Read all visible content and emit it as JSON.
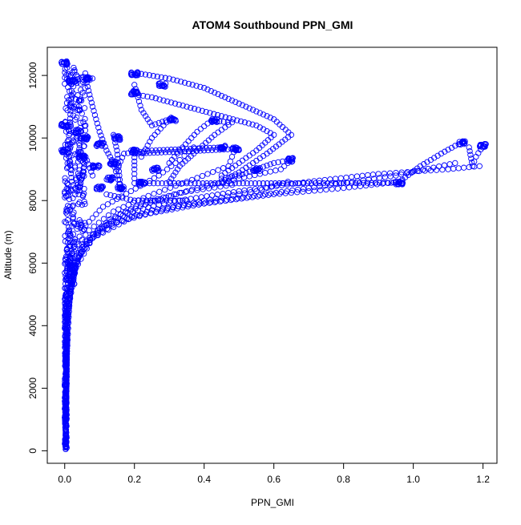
{
  "chart_data": {
    "type": "scatter",
    "title": "ATOM4 Southbound PPN_GMI",
    "xlabel": "PPN_GMI",
    "ylabel": "Altitude (m)",
    "xlim": [
      -0.05,
      1.24
    ],
    "ylim": [
      -400,
      12900
    ],
    "xticks": [
      "0.0",
      "0.2",
      "0.4",
      "0.6",
      "0.8",
      "1.0",
      "1.2"
    ],
    "xtick_values": [
      0,
      0.2,
      0.4,
      0.6,
      0.8,
      1.0,
      1.2
    ],
    "yticks": [
      "0",
      "2000",
      "4000",
      "6000",
      "8000",
      "10000",
      "12000"
    ],
    "ytick_values": [
      0,
      2000,
      4000,
      6000,
      8000,
      10000,
      12000
    ],
    "marker": "open-circle",
    "point_color": "#0000ff",
    "grid": false,
    "series": [
      {
        "profiles": [
          [
            [
              0.003,
              100
            ],
            [
              0.005,
              2000
            ],
            [
              0.008,
              4000
            ],
            [
              0.02,
              5500
            ],
            [
              0.05,
              6500
            ],
            [
              0.12,
              7200
            ],
            [
              0.25,
              7700
            ],
            [
              0.45,
              8000
            ],
            [
              0.7,
              8400
            ],
            [
              0.95,
              8800
            ],
            [
              1.12,
              9200
            ]
          ],
          [
            [
              0.002,
              150
            ],
            [
              0.004,
              2500
            ],
            [
              0.01,
              4500
            ],
            [
              0.03,
              5800
            ],
            [
              0.08,
              6800
            ],
            [
              0.2,
              7500
            ],
            [
              0.4,
              7900
            ],
            [
              0.6,
              8200
            ],
            [
              0.8,
              8400
            ],
            [
              0.96,
              8600
            ]
          ],
          [
            [
              0.003,
              300
            ],
            [
              0.006,
              3000
            ],
            [
              0.015,
              5000
            ],
            [
              0.04,
              6200
            ],
            [
              0.1,
              7100
            ],
            [
              0.18,
              7600
            ],
            [
              0.3,
              7950
            ],
            [
              0.5,
              8300
            ],
            [
              0.7,
              8600
            ],
            [
              0.9,
              8850
            ],
            [
              1.1,
              9000
            ],
            [
              1.19,
              9100
            ]
          ],
          [
            [
              0.002,
              200
            ],
            [
              0.005,
              3500
            ],
            [
              0.012,
              5200
            ],
            [
              0.05,
              6600
            ],
            [
              0.15,
              7300
            ],
            [
              0.28,
              7700
            ],
            [
              0.4,
              8000
            ],
            [
              0.55,
              8300
            ],
            [
              0.64,
              8600
            ]
          ],
          [
            [
              0.004,
              500
            ],
            [
              0.007,
              4000
            ],
            [
              0.02,
              5600
            ],
            [
              0.06,
              6700
            ],
            [
              0.13,
              7400
            ],
            [
              0.22,
              7900
            ],
            [
              0.33,
              8250
            ],
            [
              0.48,
              8500
            ]
          ],
          [
            [
              0.003,
              800
            ],
            [
              0.006,
              4500
            ],
            [
              0.03,
              6000
            ],
            [
              0.08,
              6900
            ],
            [
              0.16,
              7550
            ],
            [
              0.26,
              8000
            ],
            [
              0.38,
              8400
            ],
            [
              0.5,
              8700
            ],
            [
              0.62,
              9000
            ],
            [
              0.65,
              9300
            ]
          ],
          [
            [
              0.002,
              1000
            ],
            [
              0.005,
              5000
            ],
            [
              0.02,
              6300
            ],
            [
              0.07,
              7050
            ],
            [
              0.14,
              7650
            ],
            [
              0.24,
              8150
            ],
            [
              0.35,
              8600
            ],
            [
              0.47,
              9100
            ],
            [
              0.49,
              9700
            ]
          ],
          [
            [
              0.004,
              1200
            ],
            [
              0.008,
              5300
            ],
            [
              0.025,
              6500
            ],
            [
              0.06,
              7200
            ],
            [
              0.11,
              7800
            ],
            [
              0.19,
              8300
            ],
            [
              0.27,
              8800
            ],
            [
              0.33,
              9300
            ],
            [
              0.37,
              9700
            ]
          ]
        ],
        "paths": [
          [
            [
              0.22,
              8550
            ],
            [
              0.35,
              8550
            ],
            [
              0.5,
              8550
            ],
            [
              0.65,
              8550
            ],
            [
              0.8,
              8560
            ],
            [
              0.96,
              8570
            ]
          ],
          [
            [
              0.2,
              8560
            ],
            [
              0.2,
              9000
            ],
            [
              0.2,
              9500
            ],
            [
              0.3,
              9550
            ],
            [
              0.4,
              9600
            ],
            [
              0.49,
              9650
            ]
          ],
          [
            [
              0.15,
              9000
            ],
            [
              0.17,
              9500
            ],
            [
              0.25,
              9600
            ],
            [
              0.35,
              9650
            ],
            [
              0.45,
              9700
            ]
          ],
          [
            [
              0.3,
              9200
            ],
            [
              0.33,
              9600
            ],
            [
              0.38,
              10200
            ],
            [
              0.42,
              10550
            ],
            [
              0.48,
              10500
            ],
            [
              0.43,
              10100
            ],
            [
              0.37,
              9500
            ],
            [
              0.33,
              9100
            ],
            [
              0.3,
              8600
            ]
          ],
          [
            [
              0.2,
              12050
            ],
            [
              0.22,
              12050
            ],
            [
              0.3,
              11900
            ],
            [
              0.4,
              11600
            ],
            [
              0.5,
              11100
            ],
            [
              0.6,
              10600
            ],
            [
              0.65,
              10100
            ],
            [
              0.58,
              9500
            ],
            [
              0.5,
              8900
            ],
            [
              0.45,
              8600
            ]
          ],
          [
            [
              0.2,
              11400
            ],
            [
              0.25,
              11300
            ],
            [
              0.35,
              11000
            ],
            [
              0.45,
              10700
            ],
            [
              0.55,
              10400
            ],
            [
              0.6,
              10100
            ],
            [
              0.55,
              9600
            ],
            [
              0.5,
              9200
            ],
            [
              0.45,
              8800
            ]
          ],
          [
            [
              0.65,
              9300
            ],
            [
              0.6,
              9200
            ],
            [
              0.55,
              9000
            ],
            [
              0.5,
              8800
            ],
            [
              0.45,
              8700
            ]
          ],
          [
            [
              0.96,
              8600
            ],
            [
              1.02,
              9100
            ],
            [
              1.08,
              9500
            ],
            [
              1.12,
              9750
            ],
            [
              1.14,
              9850
            ]
          ],
          [
            [
              1.2,
              9750
            ],
            [
              1.18,
              9400
            ],
            [
              1.17,
              9100
            ],
            [
              1.16,
              9700
            ]
          ],
          [
            [
              0.06,
              11900
            ],
            [
              0.08,
              11000
            ],
            [
              0.1,
              10200
            ],
            [
              0.12,
              9600
            ],
            [
              0.14,
              9200
            ],
            [
              0.16,
              8400
            ],
            [
              0.15,
              9600
            ],
            [
              0.14,
              10100
            ]
          ],
          [
            [
              0.03,
              11800
            ],
            [
              0.02,
              11500
            ],
            [
              0.015,
              10500
            ],
            [
              0.01,
              9800
            ],
            [
              0.02,
              8600
            ],
            [
              0.04,
              8200
            ],
            [
              0.06,
              9400
            ],
            [
              0.08,
              8800
            ]
          ],
          [
            [
              0.2,
              11700
            ],
            [
              0.22,
              10900
            ],
            [
              0.25,
              10400
            ],
            [
              0.3,
              10600
            ],
            [
              0.25,
              10000
            ],
            [
              0.22,
              9400
            ]
          ],
          [
            [
              0.12,
              8200
            ],
            [
              0.2,
              8000
            ],
            [
              0.28,
              8000
            ],
            [
              0.35,
              8000
            ]
          ]
        ],
        "clusters": [
          [
            0.0,
            12400
          ],
          [
            0.02,
            11800
          ],
          [
            0.07,
            11900
          ],
          [
            0.2,
            12050
          ],
          [
            0.28,
            11700
          ],
          [
            0.2,
            11450
          ],
          [
            0.31,
            10600
          ],
          [
            0.43,
            10550
          ],
          [
            0.45,
            9700
          ],
          [
            0.49,
            9650
          ],
          [
            0.65,
            9300
          ],
          [
            0.55,
            9000
          ],
          [
            0.96,
            8570
          ],
          [
            1.14,
            9850
          ],
          [
            1.2,
            9750
          ],
          [
            0.2,
            9600
          ],
          [
            0.26,
            9000
          ],
          [
            0.22,
            8550
          ],
          [
            0.15,
            10000
          ],
          [
            0.14,
            9200
          ],
          [
            0.1,
            9800
          ],
          [
            0.06,
            10000
          ],
          [
            0.04,
            10200
          ],
          [
            0.05,
            9400
          ],
          [
            0.09,
            9100
          ],
          [
            0.0,
            10400
          ],
          [
            0.0,
            9600
          ],
          [
            0.13,
            8700
          ],
          [
            0.1,
            8400
          ],
          [
            0.16,
            8400
          ]
        ]
      }
    ]
  }
}
